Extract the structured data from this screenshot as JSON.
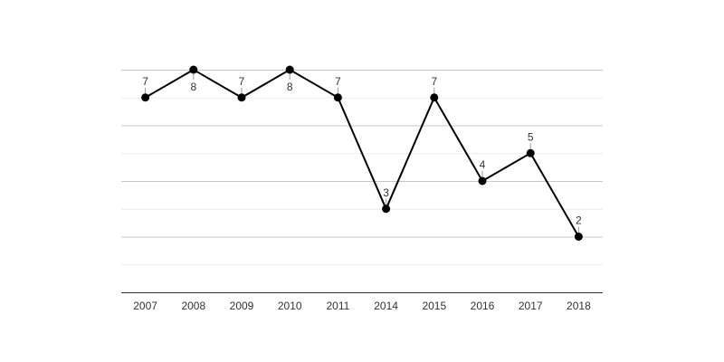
{
  "chart_data": {
    "type": "line",
    "title": "",
    "xlabel": "",
    "ylabel": "",
    "categories": [
      "2007",
      "2008",
      "2009",
      "2010",
      "2011",
      "2014",
      "2015",
      "2016",
      "2017",
      "2018"
    ],
    "series": [
      {
        "name": "",
        "values": [
          7,
          8,
          7,
          8,
          7,
          3,
          7,
          4,
          5,
          2
        ],
        "color": "#000000"
      }
    ],
    "data_labels": [
      "7",
      "8",
      "7",
      "8",
      "7",
      "3",
      "7",
      "4",
      "5",
      "2"
    ],
    "label_positions": [
      "above",
      "below",
      "above",
      "below",
      "above",
      "above",
      "above",
      "above",
      "above",
      "above"
    ],
    "ylim": [
      0,
      8
    ],
    "y_axis_visible": false,
    "grid": true,
    "legend": "none"
  }
}
